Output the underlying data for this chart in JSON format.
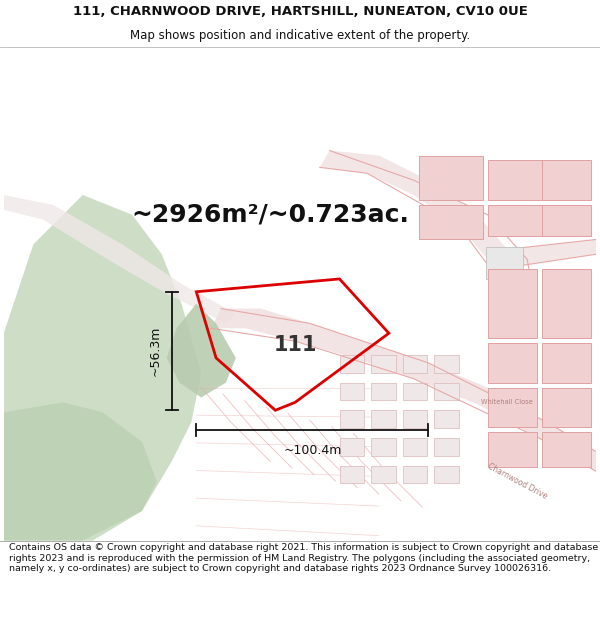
{
  "title_line1": "111, CHARNWOOD DRIVE, HARTSHILL, NUNEATON, CV10 0UE",
  "title_line2": "Map shows position and indicative extent of the property.",
  "area_text": "~2926m²/~0.723ac.",
  "property_number": "111",
  "dim_width": "~100.4m",
  "dim_height": "~56.3m",
  "footer_text": "Contains OS data © Crown copyright and database right 2021. This information is subject to Crown copyright and database rights 2023 and is reproduced with the permission of HM Land Registry. The polygons (including the associated geometry, namely x, y co-ordinates) are subject to Crown copyright and database rights 2023 Ordnance Survey 100026316.",
  "bg_color": "#ffffff",
  "map_bg": "#ffffff",
  "road_color": "#f5c8c8",
  "road_line_color": "#e8a8a8",
  "green_color": "#c8d8c0",
  "property_fill": "#b8ccb0",
  "property_edge": "#dd0000",
  "grey_bld": "#d8d8d8",
  "grey_bld_edge": "#b8b8b8",
  "pink_bld_fill": "#f0d0d0",
  "pink_bld_edge": "#e0a0a0",
  "title_fg": "#111111",
  "dim_color": "#111111",
  "area_fontsize": 18,
  "title_fontsize": 9.5,
  "subtitle_fontsize": 8.5,
  "footer_fontsize": 6.8
}
